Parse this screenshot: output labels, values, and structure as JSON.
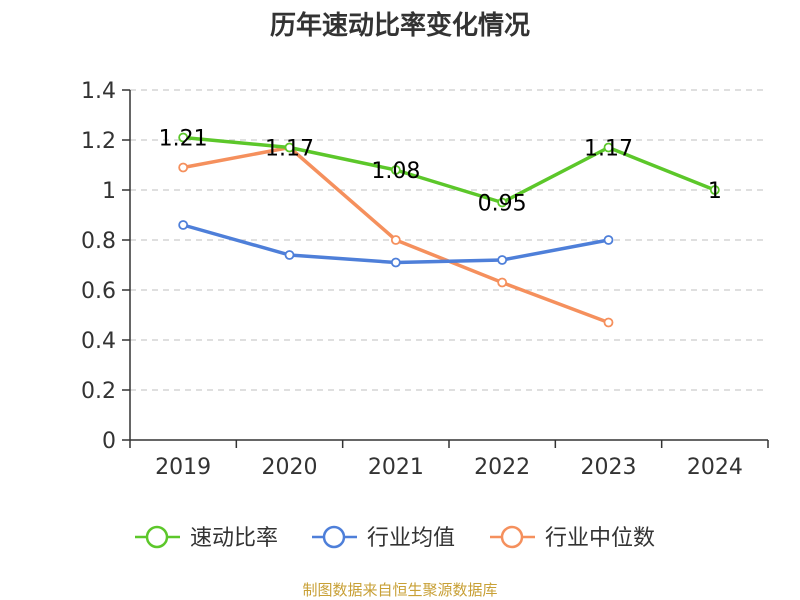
{
  "chart_data": {
    "type": "line",
    "title": "历年速动比率变化情况",
    "categories": [
      "2019",
      "2020",
      "2021",
      "2022",
      "2023",
      "2024"
    ],
    "ylim": [
      0,
      1.4
    ],
    "yticks": [
      "0",
      "0.2",
      "0.4",
      "0.6",
      "0.8",
      "1",
      "1.2",
      "1.4"
    ],
    "grid": true,
    "legend_position": "bottom",
    "series": [
      {
        "name": "速动比率",
        "color": "#5cc72a",
        "values": [
          1.21,
          1.17,
          1.08,
          0.95,
          1.17,
          1.0
        ],
        "labels": [
          "1.21",
          "1.17",
          "1.08",
          "0.95",
          "1.17",
          "1"
        ]
      },
      {
        "name": "行业均值",
        "color": "#4e7fd9",
        "values": [
          0.86,
          0.74,
          0.71,
          0.72,
          0.8,
          null
        ]
      },
      {
        "name": "行业中位数",
        "color": "#f5905d",
        "values": [
          1.09,
          1.17,
          0.8,
          0.63,
          0.47,
          null
        ]
      }
    ]
  },
  "footer": {
    "source": "制图数据来自恒生聚源数据库"
  }
}
